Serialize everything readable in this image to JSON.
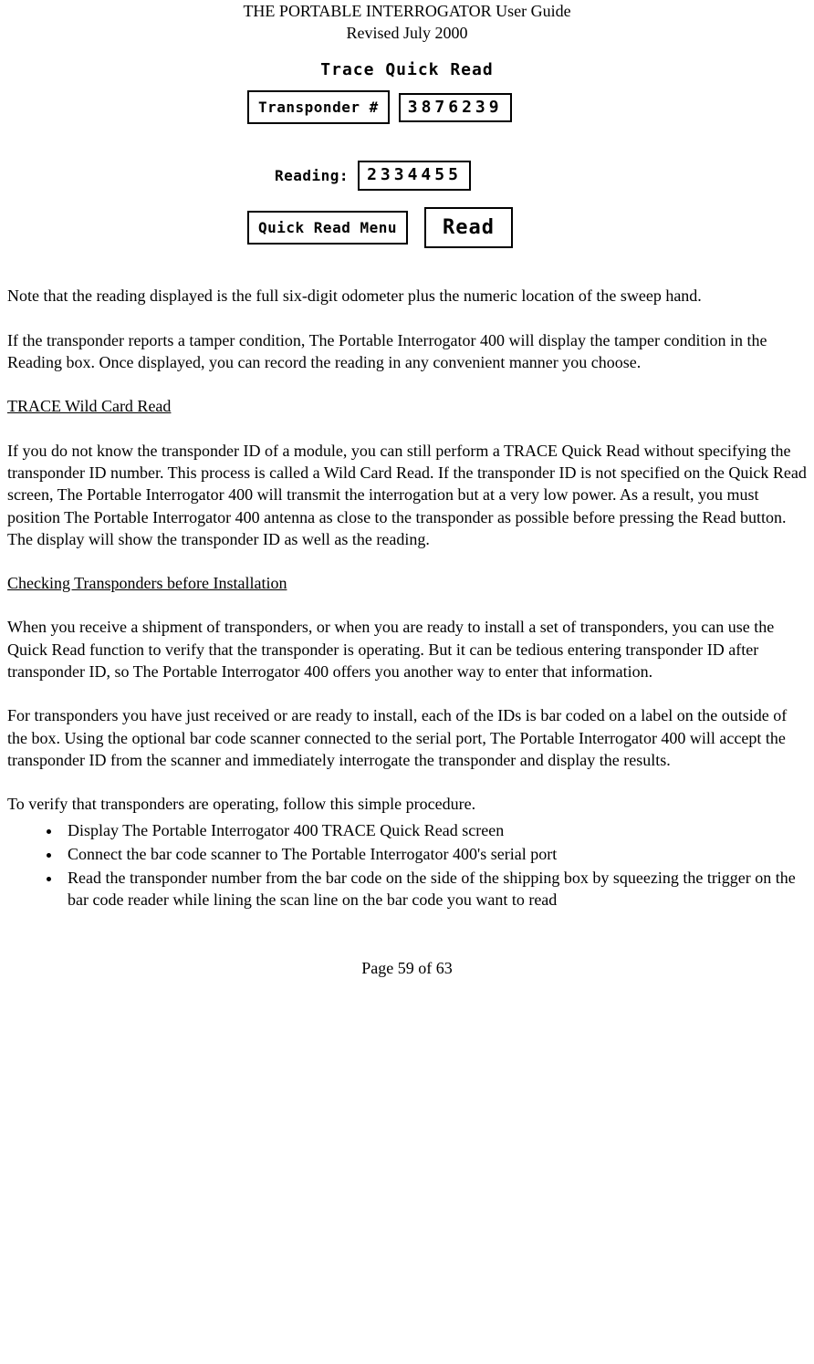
{
  "header": {
    "title": "THE PORTABLE INTERROGATOR User Guide",
    "revised": "Revised July 2000"
  },
  "device": {
    "screen_title": "Trace Quick Read",
    "transponder_label": "Transponder #",
    "transponder_value": "3876239",
    "reading_label": "Reading:",
    "reading_value": "2334455",
    "menu_label": "Quick Read Menu",
    "read_button": "Read"
  },
  "body": {
    "p1": "Note that the reading displayed is the full six-digit odometer plus the numeric location of the sweep hand.",
    "p2": "If the transponder reports a tamper condition, The Portable Interrogator 400 will display the tamper condition in the Reading box.  Once displayed, you can record the reading in any convenient manner you choose.",
    "h1": "TRACE Wild Card Read",
    "p3": "If you do not know the transponder ID of a module, you can still perform a TRACE Quick Read without specifying the transponder ID number.  This process is called a Wild Card Read.  If the transponder ID is not specified on the Quick Read screen, The Portable Interrogator 400 will transmit the interrogation but at a very low power.  As a result, you must position The Portable Interrogator 400 antenna as close to the transponder as possible before pressing the Read button.  The display will show the transponder ID as well as the reading.",
    "h2": "Checking Transponders before Installation",
    "p4": "When you receive a shipment of transponders, or when you are ready to install a set of transponders, you can use the Quick Read function to verify that the transponder is operating.  But it can be tedious entering transponder ID after transponder ID, so The Portable Interrogator 400 offers you another way to enter that information.",
    "p5": "For transponders you have just received or are ready to install, each of the IDs is bar coded on a label on the outside of the box.  Using the optional bar code scanner connected to the serial port, The Portable Interrogator 400 will accept the transponder ID from the scanner and immediately interrogate the transponder and display the results.",
    "p6": "To verify that transponders are operating, follow this simple procedure.",
    "bullets": [
      "Display The Portable Interrogator 400 TRACE Quick Read screen",
      "Connect the bar code scanner to The Portable Interrogator 400's serial port",
      "Read the transponder number from the bar code on the side of the shipping box by squeezing the trigger on the bar code reader while lining the scan line on the bar code you want to read"
    ]
  },
  "footer": {
    "page": "Page 59 of 63"
  }
}
